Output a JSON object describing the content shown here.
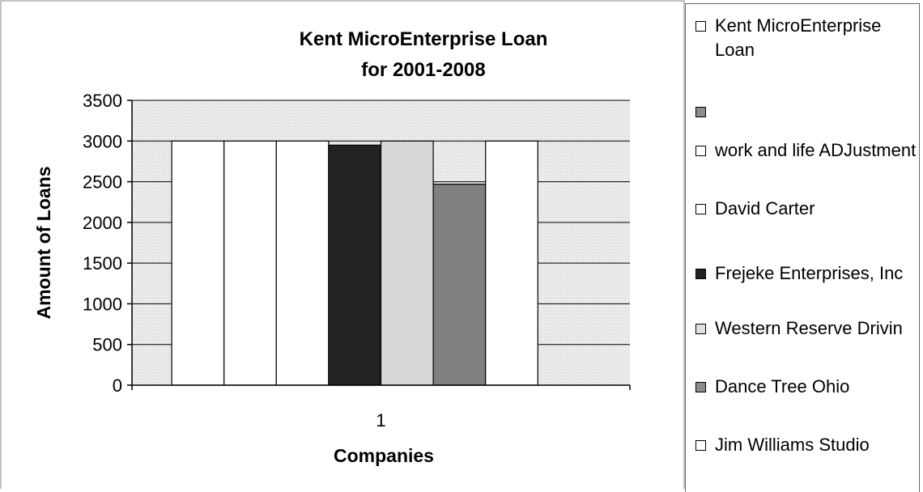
{
  "chart_data": {
    "type": "bar",
    "title": "Kent MicroEnterprise Loan for 2001-2008",
    "title_lines": [
      "Kent MicroEnterprise Loan",
      "for 2001-2008"
    ],
    "xlabel": "Companies",
    "ylabel": "Amount of Loans",
    "categories": [
      "1"
    ],
    "ylim": [
      0,
      3500
    ],
    "yticks": [
      0,
      500,
      1000,
      1500,
      2000,
      2500,
      3000,
      3500
    ],
    "grid": true,
    "legend_position": "right",
    "series": [
      {
        "name": "Kent MicroEnterprise Loan",
        "values": [
          3000
        ],
        "color": "#ffffff"
      },
      {
        "name": "",
        "values": [
          3000
        ],
        "color": "#ffffff",
        "legend_swatch": "#8c8c8c"
      },
      {
        "name": "work and life ADJustment",
        "values": [
          3000
        ],
        "color": "#ffffff"
      },
      {
        "name": "David Carter",
        "values": [
          2950
        ],
        "color": "#222222",
        "legend_swatch": "#ffffff"
      },
      {
        "name": "Frejeke Enterprises, Inc",
        "values": [
          3000
        ],
        "color": "#d8d8d8",
        "legend_swatch": "#222222"
      },
      {
        "name": "Western Reserve Drivin",
        "values": [
          2470
        ],
        "color": "#7f7f7f",
        "legend_swatch": "#e0e0e0"
      },
      {
        "name": "Dance Tree Ohio",
        "values": [
          3000
        ],
        "color": "#ffffff",
        "legend_swatch": "#8c8c8c"
      },
      {
        "name": "Jim Williams Studio",
        "values": [
          0
        ],
        "color": "#ffffff"
      }
    ]
  }
}
